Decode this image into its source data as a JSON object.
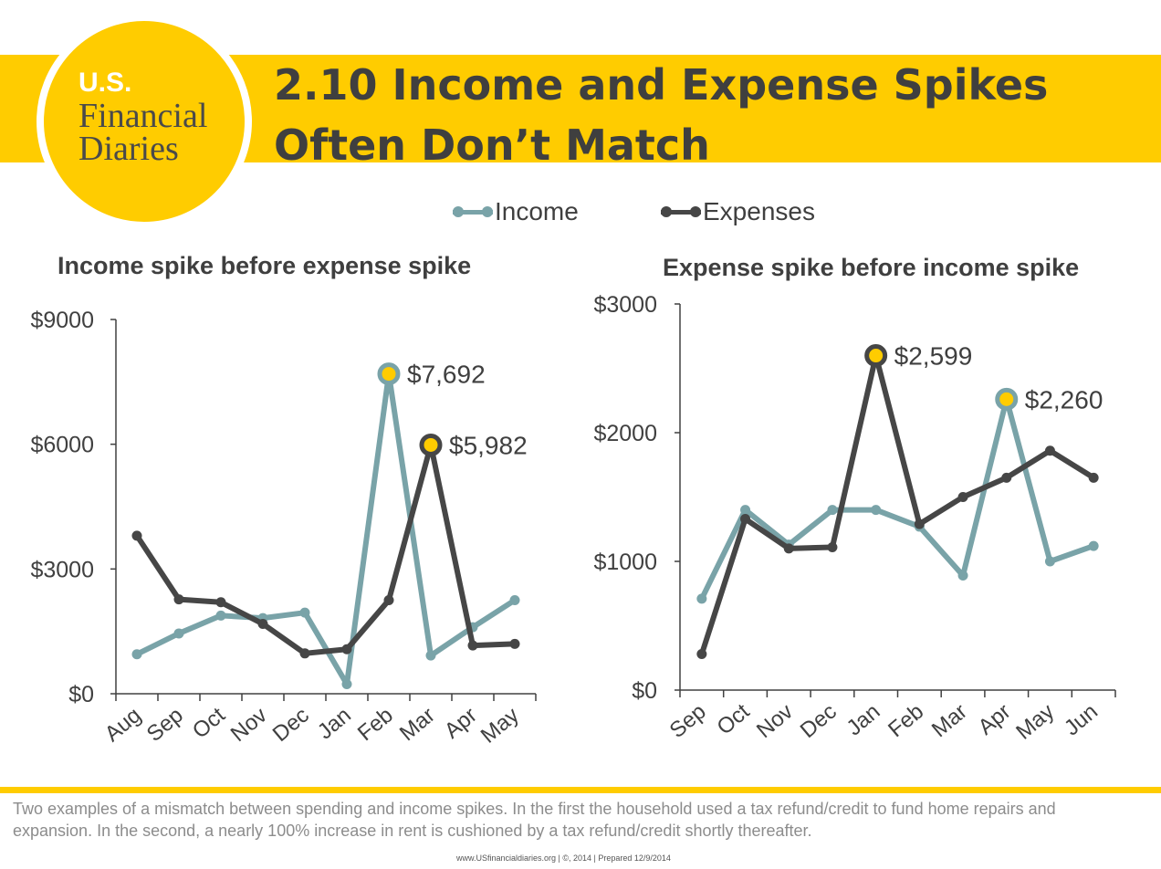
{
  "logo": {
    "line1": "U.S.",
    "line2": "Financial",
    "line3": "Diaries"
  },
  "title": "2.10 Income and Expense Spikes Often Don’t Match",
  "legend": {
    "income": "Income",
    "expenses": "Expenses"
  },
  "colors": {
    "income": "#79A3A8",
    "expenses": "#464646",
    "accent": "#FFCC00",
    "axis": "#404040"
  },
  "chart_data": [
    {
      "type": "line",
      "title": "Income spike before expense spike",
      "categories": [
        "Aug",
        "Sep",
        "Oct",
        "Nov",
        "Dec",
        "Jan",
        "Feb",
        "Mar",
        "Apr",
        "May"
      ],
      "series": [
        {
          "name": "Income",
          "values": [
            950,
            1450,
            1880,
            1820,
            1950,
            230,
            7692,
            920,
            1600,
            2250
          ]
        },
        {
          "name": "Expenses",
          "values": [
            3800,
            2270,
            2200,
            1680,
            970,
            1070,
            2250,
            5982,
            1160,
            1200
          ]
        }
      ],
      "ylim": [
        0,
        9000
      ],
      "yticks": [
        0,
        3000,
        6000,
        9000
      ],
      "ytick_labels": [
        "$0",
        "$3000",
        "$6000",
        "$9000"
      ],
      "annotations": [
        {
          "series": "Income",
          "index": 6,
          "label": "$7,692"
        },
        {
          "series": "Expenses",
          "index": 7,
          "label": "$5,982"
        }
      ]
    },
    {
      "type": "line",
      "title": "Expense spike before income spike",
      "categories": [
        "Sep",
        "Oct",
        "Nov",
        "Dec",
        "Jan",
        "Feb",
        "Mar",
        "Apr",
        "May",
        "Jun"
      ],
      "series": [
        {
          "name": "Income",
          "values": [
            710,
            1400,
            1130,
            1400,
            1400,
            1270,
            890,
            2260,
            1000,
            1120
          ]
        },
        {
          "name": "Expenses",
          "values": [
            280,
            1330,
            1100,
            1110,
            2599,
            1290,
            1500,
            1650,
            1860,
            1650
          ]
        }
      ],
      "ylim": [
        0,
        3000
      ],
      "yticks": [
        0,
        1000,
        2000,
        3000
      ],
      "ytick_labels": [
        "$0",
        "$1000",
        "$2000",
        "$3000"
      ],
      "annotations": [
        {
          "series": "Expenses",
          "index": 4,
          "label": "$2,599"
        },
        {
          "series": "Income",
          "index": 7,
          "label": "$2,260"
        }
      ]
    }
  ],
  "caption": "Two examples of a mismatch between spending and income spikes. In the first the household used a tax refund/credit to fund home repairs and expansion. In the second, a nearly 100% increase in rent is cushioned by a tax refund/credit shortly thereafter.",
  "footer": "www.USfinancialdiaries.org | ©, 2014 | Prepared 12/9/2014"
}
